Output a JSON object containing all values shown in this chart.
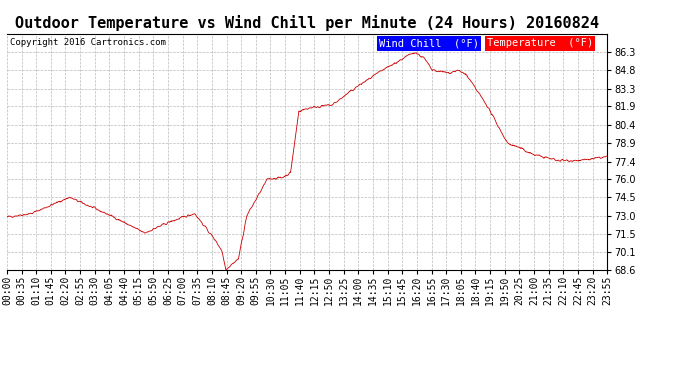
{
  "title": "Outdoor Temperature vs Wind Chill per Minute (24 Hours) 20160824",
  "copyright": "Copyright 2016 Cartronics.com",
  "legend_wind_chill": "Wind Chill  (°F)",
  "legend_temperature": "Temperature  (°F)",
  "background_color": "#ffffff",
  "plot_bg_color": "#ffffff",
  "grid_color": "#bbbbbb",
  "line_color": "#cc0000",
  "title_fontsize": 11,
  "tick_fontsize": 7,
  "copyright_fontsize": 6.5,
  "legend_fontsize": 7.5,
  "ylim_min": 68.6,
  "ylim_max": 87.78,
  "yticks": [
    68.6,
    70.1,
    71.5,
    73.0,
    74.5,
    76.0,
    77.4,
    78.9,
    80.4,
    81.9,
    83.3,
    84.8,
    86.3
  ],
  "xtick_labels": [
    "00:00",
    "00:35",
    "01:10",
    "01:45",
    "02:20",
    "02:55",
    "03:30",
    "04:05",
    "04:40",
    "05:15",
    "05:50",
    "06:25",
    "07:00",
    "07:35",
    "08:10",
    "08:45",
    "09:20",
    "09:55",
    "10:30",
    "11:05",
    "11:40",
    "12:15",
    "12:50",
    "13:25",
    "14:00",
    "14:35",
    "15:10",
    "15:45",
    "16:20",
    "16:55",
    "17:30",
    "18:05",
    "18:40",
    "19:15",
    "19:50",
    "20:25",
    "21:00",
    "21:35",
    "22:10",
    "22:45",
    "23:20",
    "23:55"
  ],
  "keyframes_x": [
    0,
    60,
    150,
    250,
    330,
    390,
    450,
    500,
    515,
    525,
    540,
    555,
    575,
    625,
    660,
    680,
    700,
    730,
    780,
    840,
    900,
    977,
    1000,
    1020,
    1060,
    1080,
    1100,
    1150,
    1200,
    1230,
    1260,
    1320,
    1380,
    1439
  ],
  "keyframes_y": [
    72.9,
    73.2,
    74.5,
    73.0,
    71.6,
    72.5,
    73.2,
    71.0,
    70.2,
    68.65,
    69.1,
    69.5,
    73.0,
    76.0,
    76.1,
    76.5,
    81.5,
    81.8,
    82.0,
    83.5,
    84.8,
    86.3,
    85.8,
    84.8,
    84.6,
    84.8,
    84.5,
    82.0,
    78.9,
    78.5,
    78.0,
    77.5,
    77.5,
    77.8
  ]
}
